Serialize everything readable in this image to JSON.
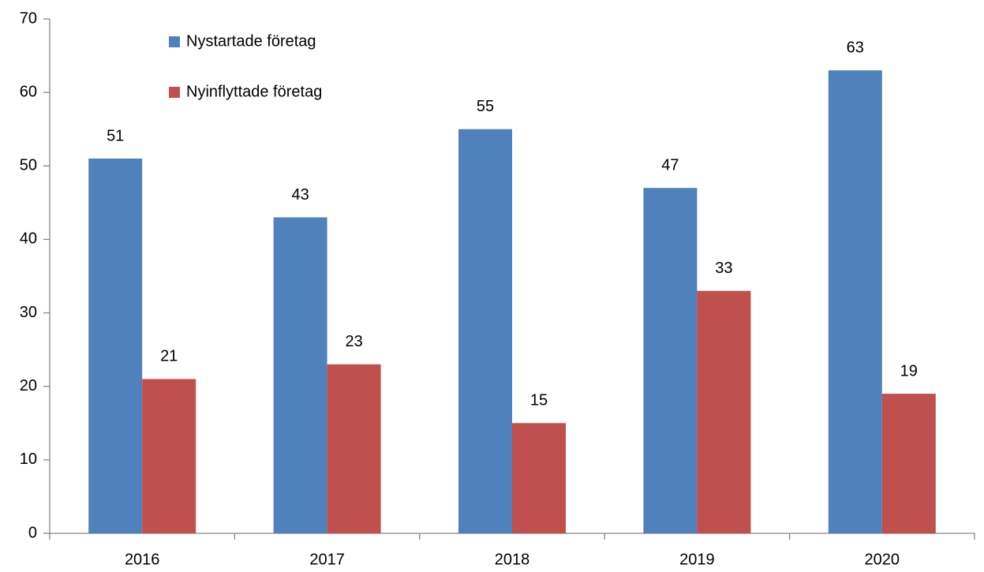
{
  "chart_data": {
    "type": "bar",
    "categories": [
      "2016",
      "2017",
      "2018",
      "2019",
      "2020"
    ],
    "series": [
      {
        "name": "Nystartade företag",
        "color": "#4f81bd",
        "values": [
          51,
          43,
          55,
          47,
          63
        ]
      },
      {
        "name": "Nyinflyttade företag",
        "color": "#c0504d",
        "values": [
          21,
          23,
          15,
          33,
          19
        ]
      }
    ],
    "ylim": [
      0,
      70
    ],
    "yticks": [
      0,
      10,
      20,
      30,
      40,
      50,
      60,
      70
    ],
    "grid": false,
    "legend": "top-left",
    "data_labels": true
  }
}
